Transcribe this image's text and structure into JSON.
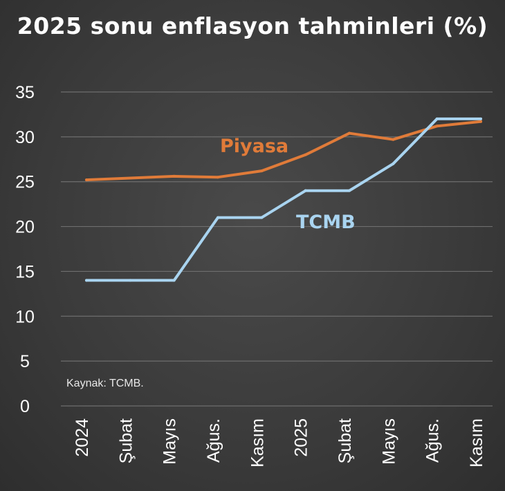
{
  "chart_data": {
    "type": "line",
    "title": "2025 sonu enflasyon tahminleri (%)",
    "xlabel": "",
    "ylabel": "",
    "ylim": [
      0,
      35
    ],
    "yticks": [
      0,
      5,
      10,
      15,
      20,
      25,
      30,
      35
    ],
    "grid": true,
    "x": [
      "2024",
      "Şubat",
      "Mayıs",
      "Ağus.",
      "Kasım",
      "2025",
      "Şubat",
      "Mayıs",
      "Ağus.",
      "Kasım"
    ],
    "series": [
      {
        "name": "Piyasa",
        "color": "#e07b39",
        "values": [
          25.2,
          25.4,
          25.6,
          25.5,
          26.2,
          28.0,
          30.4,
          29.7,
          31.2,
          31.7
        ]
      },
      {
        "name": "TCMB",
        "color": "#a9d4f0",
        "values": [
          14,
          14,
          14,
          21,
          21,
          24,
          24,
          27,
          32,
          32
        ]
      }
    ],
    "annotations": [
      {
        "text": "Kaynak: TCMB."
      }
    ]
  }
}
